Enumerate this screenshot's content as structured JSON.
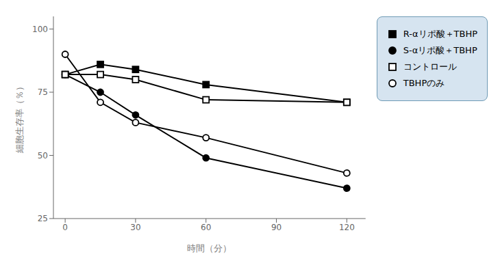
{
  "chart_data": {
    "type": "line",
    "x": [
      0,
      15,
      30,
      60,
      120
    ],
    "series": [
      {
        "name": "R-αリポ酸＋TBHP",
        "color": "black",
        "marker": "square",
        "values": [
          82,
          86,
          84,
          78,
          71
        ]
      },
      {
        "name": "S-αリポ酸＋TBHP",
        "color": "black",
        "marker": "circle",
        "values": [
          82,
          75,
          66,
          49,
          37
        ]
      },
      {
        "name": "コントロール",
        "color": "black",
        "marker": "open_square",
        "values": [
          82,
          82,
          80,
          72,
          71
        ]
      },
      {
        "name": "TBHPのみ",
        "color": "black",
        "marker": "open_circle",
        "values": [
          90,
          71,
          63,
          57,
          43
        ]
      }
    ],
    "x_label": "時間（分）",
    "y_label": "細胞生存率（％）",
    "xlim": [
      -5,
      128
    ],
    "ylim": [
      25,
      105
    ],
    "xticks": [
      0,
      30,
      60,
      90,
      120
    ],
    "yticks": [
      25,
      50,
      75,
      100
    ],
    "grid": false,
    "legend": "right"
  }
}
